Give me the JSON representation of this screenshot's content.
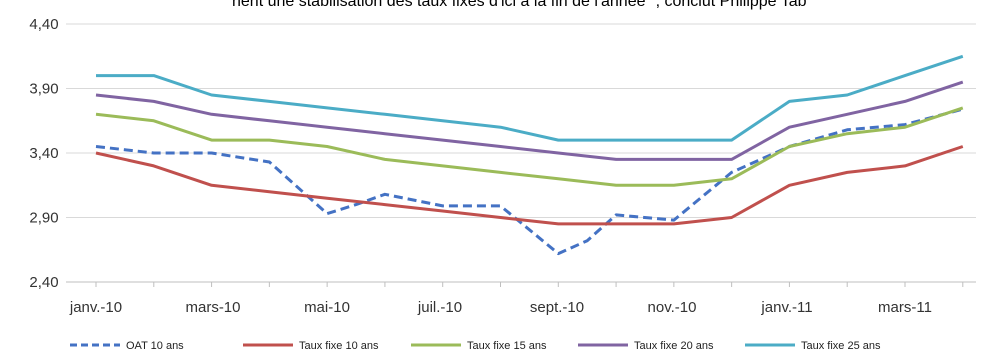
{
  "header": {
    "banner_text": "nent une stabilisation des taux fixes d'ici à la fin de l'année \", conclut Philippe Tab"
  },
  "chart_data": {
    "type": "line",
    "title": "",
    "xlabel": "",
    "ylabel": "",
    "ylim": [
      2.4,
      4.4
    ],
    "yticks": [
      "4,40",
      "3,90",
      "3,40",
      "2,90",
      "2,40"
    ],
    "ytick_values": [
      4.4,
      3.9,
      3.4,
      2.9,
      2.4
    ],
    "x_tick_labels": [
      "janv.-10",
      "mars-10",
      "mai-10",
      "juil.-10",
      "sept.-10",
      "nov.-10",
      "janv.-11",
      "mars-11"
    ],
    "x_tick_positions": [
      0,
      2,
      4,
      6,
      8,
      10,
      12,
      14
    ],
    "x_range": [
      0,
      15
    ],
    "grid": "horizontal",
    "legend_position": "bottom",
    "series": [
      {
        "name": "OAT 10 ans",
        "color": "#4472c4",
        "dash": true,
        "x": [
          0,
          1,
          2,
          3,
          4,
          4.5,
          5,
          6,
          7,
          8,
          8.5,
          9,
          10,
          11,
          12,
          13,
          14,
          15
        ],
        "y": [
          3.45,
          3.4,
          3.4,
          3.33,
          2.93,
          3.0,
          3.08,
          2.99,
          2.99,
          2.62,
          2.72,
          2.92,
          2.88,
          3.25,
          3.45,
          3.58,
          3.62,
          3.74
        ]
      },
      {
        "name": "Taux fixe 10 ans",
        "color": "#c0504d",
        "dash": false,
        "x": [
          0,
          1,
          2,
          3,
          4,
          5,
          6,
          7,
          8,
          9,
          10,
          11,
          12,
          13,
          14,
          15
        ],
        "y": [
          3.4,
          3.3,
          3.15,
          3.1,
          3.05,
          3.0,
          2.95,
          2.9,
          2.85,
          2.85,
          2.85,
          2.9,
          3.15,
          3.25,
          3.3,
          3.45
        ]
      },
      {
        "name": "Taux fixe 15 ans",
        "color": "#9bbb59",
        "dash": false,
        "x": [
          0,
          1,
          2,
          3,
          4,
          5,
          6,
          7,
          8,
          9,
          10,
          11,
          12,
          13,
          14,
          15
        ],
        "y": [
          3.7,
          3.65,
          3.5,
          3.5,
          3.45,
          3.35,
          3.3,
          3.25,
          3.2,
          3.15,
          3.15,
          3.2,
          3.45,
          3.55,
          3.6,
          3.75
        ]
      },
      {
        "name": "Taux fixe 20 ans",
        "color": "#8064a2",
        "dash": false,
        "x": [
          0,
          1,
          2,
          3,
          4,
          5,
          6,
          7,
          8,
          9,
          10,
          11,
          12,
          13,
          14,
          15
        ],
        "y": [
          3.85,
          3.8,
          3.7,
          3.65,
          3.6,
          3.55,
          3.5,
          3.45,
          3.4,
          3.35,
          3.35,
          3.35,
          3.6,
          3.7,
          3.8,
          3.95
        ]
      },
      {
        "name": "Taux fixe 25 ans",
        "color": "#4bacc6",
        "dash": false,
        "x": [
          0,
          1,
          2,
          3,
          4,
          5,
          6,
          7,
          8,
          9,
          10,
          11,
          12,
          13,
          14,
          15
        ],
        "y": [
          4.0,
          4.0,
          3.85,
          3.8,
          3.75,
          3.7,
          3.65,
          3.6,
          3.5,
          3.5,
          3.5,
          3.5,
          3.8,
          3.85,
          4.0,
          4.15
        ]
      }
    ]
  }
}
